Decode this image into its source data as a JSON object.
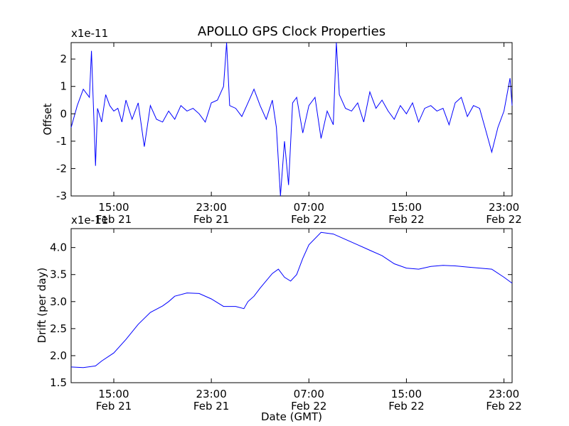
{
  "chart_data": [
    {
      "type": "line",
      "title": "APOLLO GPS Clock Properties",
      "ylabel": "Offset",
      "scale_note": "x1e-11",
      "xlim": [
        "2014-02-21 11:30",
        "2014-02-22 23:40"
      ],
      "ylim": [
        -3,
        2.6
      ],
      "yticks": [
        2,
        1,
        0,
        -1,
        -2,
        -3
      ],
      "ytick_labels": [
        "2",
        "1",
        "0",
        "-1",
        "-2",
        "-3"
      ],
      "xtick_labels": [
        {
          "time": "15:00",
          "date": "Feb 21"
        },
        {
          "time": "23:00",
          "date": "Feb 21"
        },
        {
          "time": "07:00",
          "date": "Feb 22"
        },
        {
          "time": "15:00",
          "date": "Feb 22"
        },
        {
          "time": "23:00",
          "date": "Feb 22"
        }
      ],
      "series": [
        {
          "color": "#0000ff",
          "x_hours_note": "",
          "x": [
            "11:30",
            "12:00",
            "12:30",
            "13:00",
            "13:10",
            "13:30",
            "13:40",
            "14:00",
            "14:20",
            "14:40",
            "15:00",
            "15:20",
            "15:40",
            "16:00",
            "16:30",
            "17:00",
            "17:30",
            "18:00",
            "18:30",
            "19:00",
            "19:30",
            "20:00",
            "20:30",
            "21:00",
            "21:30",
            "22:00",
            "22:30",
            "23:00",
            "23:30",
            "00:00",
            "00:15",
            "00:30",
            "01:00",
            "01:30",
            "02:00",
            "02:30",
            "03:00",
            "03:30",
            "04:00",
            "04:20",
            "04:40",
            "05:00",
            "05:20",
            "05:40",
            "06:00",
            "06:30",
            "07:00",
            "07:30",
            "08:00",
            "08:30",
            "09:00",
            "09:15",
            "09:30",
            "10:00",
            "10:30",
            "11:00",
            "11:30",
            "12:00",
            "12:30",
            "13:00",
            "13:30",
            "14:00",
            "14:30",
            "15:00",
            "15:30",
            "16:00",
            "16:30",
            "17:00",
            "17:30",
            "18:00",
            "18:30",
            "19:00",
            "19:30",
            "20:00",
            "20:30",
            "21:00",
            "21:30",
            "22:00",
            "22:30",
            "23:00",
            "23:30",
            "23:40"
          ],
          "values": [
            -0.5,
            0.3,
            0.9,
            0.6,
            2.3,
            -1.9,
            0.2,
            -0.3,
            0.7,
            0.3,
            0.1,
            0.2,
            -0.3,
            0.5,
            -0.2,
            0.4,
            -1.2,
            0.3,
            -0.2,
            -0.3,
            0.1,
            -0.2,
            0.3,
            0.1,
            0.2,
            0.0,
            -0.3,
            0.4,
            0.5,
            1.0,
            2.6,
            0.3,
            0.2,
            -0.1,
            0.4,
            0.9,
            0.3,
            -0.2,
            0.5,
            -0.5,
            -3.0,
            -1.0,
            -2.6,
            0.4,
            0.6,
            -0.7,
            0.3,
            0.6,
            -0.9,
            0.1,
            -0.4,
            2.6,
            0.7,
            0.2,
            0.1,
            0.4,
            -0.3,
            0.8,
            0.2,
            0.5,
            0.1,
            -0.2,
            0.3,
            0.0,
            0.4,
            -0.3,
            0.2,
            0.3,
            0.1,
            0.2,
            -0.4,
            0.4,
            0.6,
            -0.1,
            0.3,
            0.2,
            -0.6,
            -1.4,
            -0.5,
            0.1,
            1.3,
            0.3
          ]
        }
      ]
    },
    {
      "type": "line",
      "ylabel": "Drift (per day)",
      "xlabel": "Date (GMT)",
      "scale_note": "x1e-11",
      "ylim": [
        1.5,
        4.35
      ],
      "yticks": [
        4.0,
        3.5,
        3.0,
        2.5,
        2.0,
        1.5
      ],
      "ytick_labels": [
        "4.0",
        "3.5",
        "3.0",
        "2.5",
        "2.0",
        "1.5"
      ],
      "xtick_labels": [
        {
          "time": "15:00",
          "date": "Feb 21"
        },
        {
          "time": "23:00",
          "date": "Feb 21"
        },
        {
          "time": "07:00",
          "date": "Feb 22"
        },
        {
          "time": "15:00",
          "date": "Feb 22"
        },
        {
          "time": "23:00",
          "date": "Feb 22"
        }
      ],
      "series": [
        {
          "color": "#0000ff",
          "x": [
            "11:30",
            "12:30",
            "13:30",
            "14:00",
            "15:00",
            "16:00",
            "17:00",
            "18:00",
            "19:00",
            "19:30",
            "20:00",
            "21:00",
            "22:00",
            "23:00",
            "00:00",
            "01:00",
            "01:40",
            "02:00",
            "02:30",
            "03:00",
            "04:00",
            "04:30",
            "05:00",
            "05:30",
            "06:00",
            "06:30",
            "07:00",
            "08:00",
            "09:00",
            "10:00",
            "11:00",
            "12:00",
            "13:00",
            "14:00",
            "15:00",
            "16:00",
            "17:00",
            "18:00",
            "19:00",
            "20:00",
            "21:00",
            "22:00",
            "23:00",
            "23:40"
          ],
          "values": [
            1.79,
            1.78,
            1.81,
            1.9,
            2.05,
            2.3,
            2.58,
            2.8,
            2.92,
            3.0,
            3.1,
            3.16,
            3.15,
            3.05,
            2.91,
            2.91,
            2.87,
            3.0,
            3.1,
            3.25,
            3.52,
            3.6,
            3.45,
            3.38,
            3.5,
            3.8,
            4.05,
            4.28,
            4.25,
            4.15,
            4.05,
            3.95,
            3.85,
            3.7,
            3.62,
            3.6,
            3.65,
            3.67,
            3.66,
            3.64,
            3.62,
            3.6,
            3.45,
            3.34
          ]
        }
      ]
    }
  ]
}
